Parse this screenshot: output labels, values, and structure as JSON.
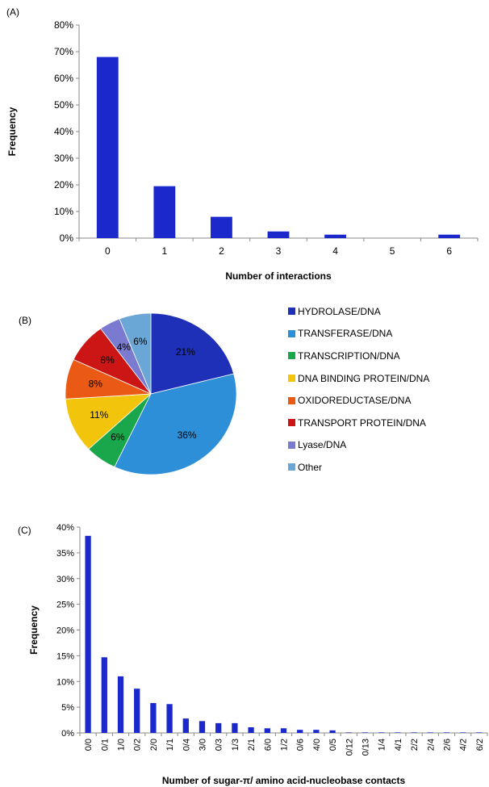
{
  "panels": {
    "a_label": "(A)",
    "b_label": "(B)",
    "c_label": "(C)"
  },
  "chart_data": [
    {
      "type": "bar",
      "panel": "(A)",
      "title": "",
      "xlabel": "Number of interactions",
      "ylabel": "Frequency",
      "categories": [
        "0",
        "1",
        "2",
        "3",
        "4",
        "5",
        "6"
      ],
      "values": [
        68,
        19.5,
        8,
        2.5,
        1.3,
        0,
        1.3
      ],
      "ylim": [
        0,
        80
      ],
      "yticks": [
        "0%",
        "10%",
        "20%",
        "30%",
        "40%",
        "50%",
        "60%",
        "70%",
        "80%"
      ],
      "color": "#1a28cc",
      "grid": false
    },
    {
      "type": "pie",
      "panel": "(B)",
      "title": "",
      "legend_position": "right",
      "slices": [
        {
          "name": "HYDROLASE/DNA",
          "value": 21,
          "label": "21%",
          "color": "#1e2fb8"
        },
        {
          "name": "TRANSFERASE/DNA",
          "value": 36,
          "label": "36%",
          "color": "#2c8fd8"
        },
        {
          "name": "TRANSCRIPTION/DNA",
          "value": 6,
          "label": "6%",
          "color": "#1aa64a"
        },
        {
          "name": "DNA BINDING PROTEIN/DNA",
          "value": 11,
          "label": "11%",
          "color": "#f2c40c"
        },
        {
          "name": "OXIDOREDUCTASE/DNA",
          "value": 8,
          "label": "8%",
          "color": "#ea5a14"
        },
        {
          "name": "TRANSPORT PROTEIN/DNA",
          "value": 8,
          "label": "8%",
          "color": "#cc1616"
        },
        {
          "name": "Lyase/DNA",
          "value": 4,
          "label": "4%",
          "color": "#7a7ad0"
        },
        {
          "name": "Other",
          "value": 6,
          "label": "6%",
          "color": "#6aa6d6"
        }
      ]
    },
    {
      "type": "bar",
      "panel": "(C)",
      "title": "",
      "xlabel": "Number of sugar-π/ amino acid-nucleobase contacts",
      "ylabel": "Frequency",
      "categories": [
        "0/0",
        "0/1",
        "1/0",
        "0/2",
        "2/0",
        "1/1",
        "0/4",
        "3/0",
        "0/3",
        "1/3",
        "2/1",
        "6/0",
        "1/2",
        "0/6",
        "4/0",
        "0/5",
        "0/12",
        "0/13",
        "1/4",
        "4/1",
        "2/2",
        "2/4",
        "2/6",
        "4/2",
        "6/2"
      ],
      "values": [
        38.3,
        14.7,
        11.0,
        8.6,
        5.8,
        5.6,
        2.8,
        2.3,
        1.9,
        1.9,
        1.1,
        0.9,
        0.9,
        0.6,
        0.6,
        0.5,
        0.1,
        0.1,
        0.1,
        0.1,
        0.1,
        0.1,
        0.1,
        0.1,
        0.1
      ],
      "ylim": [
        0,
        40
      ],
      "yticks": [
        "0%",
        "5%",
        "10%",
        "15%",
        "20%",
        "25%",
        "30%",
        "35%",
        "40%"
      ],
      "color": "#1a28cc",
      "grid": false
    }
  ]
}
